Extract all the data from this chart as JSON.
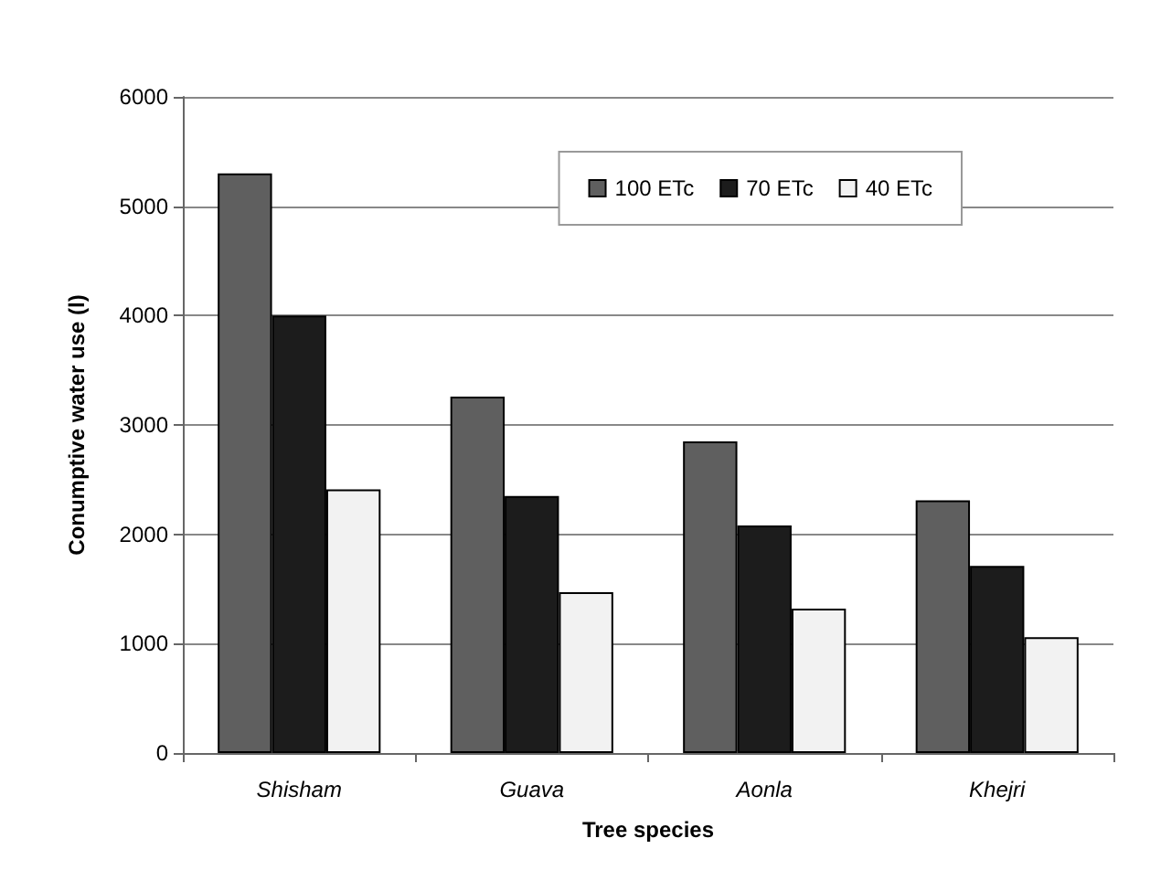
{
  "chart_data": {
    "type": "bar",
    "xlabel": "Tree species",
    "ylabel": "Conumptive water use (l)",
    "categories": [
      "Shisham",
      "Guava",
      "Aonla",
      "Khejri"
    ],
    "series": [
      {
        "name": "100 ETc",
        "color": "#5f5f5f",
        "values": [
          5300,
          3260,
          2850,
          2310
        ]
      },
      {
        "name": "70 ETc",
        "color": "#1c1c1c",
        "values": [
          4000,
          2350,
          2080,
          1710
        ]
      },
      {
        "name": "40 ETc",
        "color": "#f2f2f2",
        "values": [
          2410,
          1470,
          1320,
          1060
        ]
      }
    ],
    "ylim": [
      0,
      6000
    ],
    "yticks": [
      0,
      1000,
      2000,
      3000,
      4000,
      5000,
      6000
    ],
    "grid": "y",
    "legend": "top right"
  }
}
